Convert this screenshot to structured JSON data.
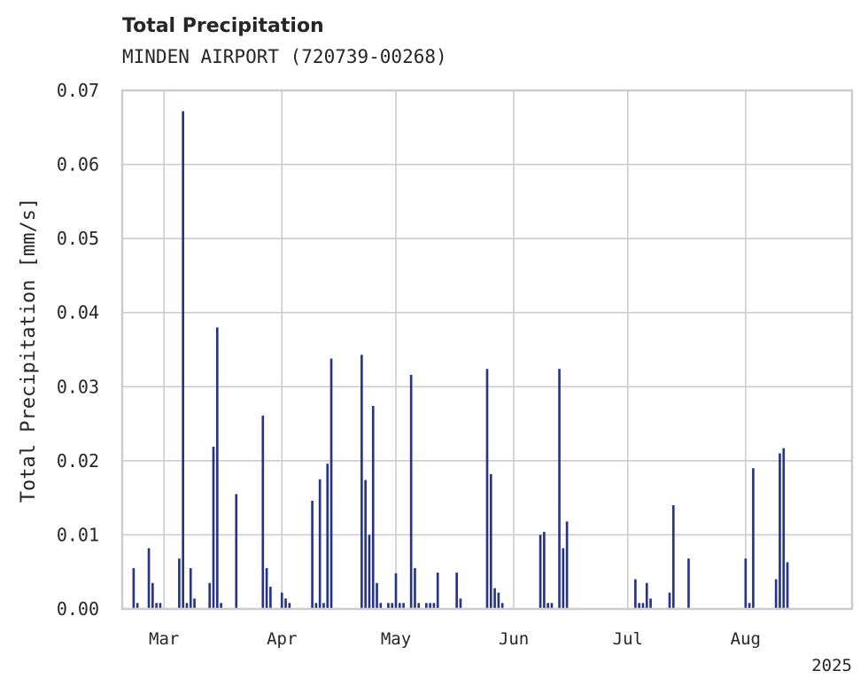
{
  "chart_data": {
    "type": "bar",
    "title": "Total Precipitation",
    "subtitle": "MINDEN AIRPORT (720739-00268)",
    "ylabel": "Total Precipitation [mm/s]",
    "xlabel": "",
    "year_label": "2025",
    "ylim": [
      0,
      0.07
    ],
    "xlim": [
      "2025-02-18",
      "2025-08-29"
    ],
    "yticks": [
      0.0,
      0.01,
      0.02,
      0.03,
      0.04,
      0.05,
      0.06,
      0.07
    ],
    "ytick_labels": [
      "0.00",
      "0.01",
      "0.02",
      "0.03",
      "0.04",
      "0.05",
      "0.06",
      "0.07"
    ],
    "xticks": [
      "2025-03-01",
      "2025-04-01",
      "2025-05-01",
      "2025-06-01",
      "2025-07-01",
      "2025-08-01"
    ],
    "xtick_labels": [
      "Mar",
      "Apr",
      "May",
      "Jun",
      "Jul",
      "Aug"
    ],
    "grid": true,
    "bar_color": "#27348b",
    "series": [
      {
        "x": [
          "2025-02-21",
          "2025-02-22",
          "2025-02-25",
          "2025-02-26",
          "2025-02-27",
          "2025-02-28",
          "2025-03-05",
          "2025-03-06",
          "2025-03-07",
          "2025-03-08",
          "2025-03-09",
          "2025-03-13",
          "2025-03-14",
          "2025-03-15",
          "2025-03-16",
          "2025-03-20",
          "2025-03-27",
          "2025-03-28",
          "2025-03-29",
          "2025-04-01",
          "2025-04-02",
          "2025-04-03",
          "2025-04-09",
          "2025-04-10",
          "2025-04-11",
          "2025-04-12",
          "2025-04-13",
          "2025-04-14",
          "2025-04-22",
          "2025-04-23",
          "2025-04-24",
          "2025-04-25",
          "2025-04-26",
          "2025-04-27",
          "2025-04-29",
          "2025-04-30",
          "2025-05-01",
          "2025-05-02",
          "2025-05-03",
          "2025-05-05",
          "2025-05-06",
          "2025-05-07",
          "2025-05-09",
          "2025-05-10",
          "2025-05-11",
          "2025-05-12",
          "2025-05-17",
          "2025-05-18",
          "2025-05-25",
          "2025-05-26",
          "2025-05-27",
          "2025-05-28",
          "2025-05-29",
          "2025-06-08",
          "2025-06-09",
          "2025-06-10",
          "2025-06-11",
          "2025-06-13",
          "2025-06-14",
          "2025-06-15",
          "2025-07-03",
          "2025-07-04",
          "2025-07-05",
          "2025-07-06",
          "2025-07-07",
          "2025-07-12",
          "2025-07-13",
          "2025-07-17",
          "2025-08-01",
          "2025-08-02",
          "2025-08-03",
          "2025-08-09",
          "2025-08-10",
          "2025-08-11",
          "2025-08-12"
        ],
        "values": [
          0.0055,
          0.0008,
          0.0082,
          0.0035,
          0.0008,
          0.0008,
          0.0068,
          0.0672,
          0.0008,
          0.0055,
          0.0014,
          0.0035,
          0.0219,
          0.038,
          0.0008,
          0.0155,
          0.0261,
          0.0055,
          0.003,
          0.0022,
          0.0014,
          0.0008,
          0.0146,
          0.0008,
          0.0175,
          0.0008,
          0.0196,
          0.0338,
          0.0343,
          0.0174,
          0.01,
          0.0274,
          0.0035,
          0.0008,
          0.0008,
          0.0008,
          0.0048,
          0.0008,
          0.0008,
          0.0316,
          0.0055,
          0.0008,
          0.0008,
          0.0008,
          0.0008,
          0.0049,
          0.0049,
          0.0014,
          0.0324,
          0.0182,
          0.0028,
          0.0022,
          0.0008,
          0.01,
          0.0104,
          0.0008,
          0.0008,
          0.0324,
          0.0082,
          0.0118,
          0.004,
          0.0008,
          0.0008,
          0.0035,
          0.0014,
          0.0022,
          0.014,
          0.0068,
          0.0068,
          0.0008,
          0.019,
          0.004,
          0.021,
          0.0217,
          0.0063
        ]
      }
    ]
  }
}
